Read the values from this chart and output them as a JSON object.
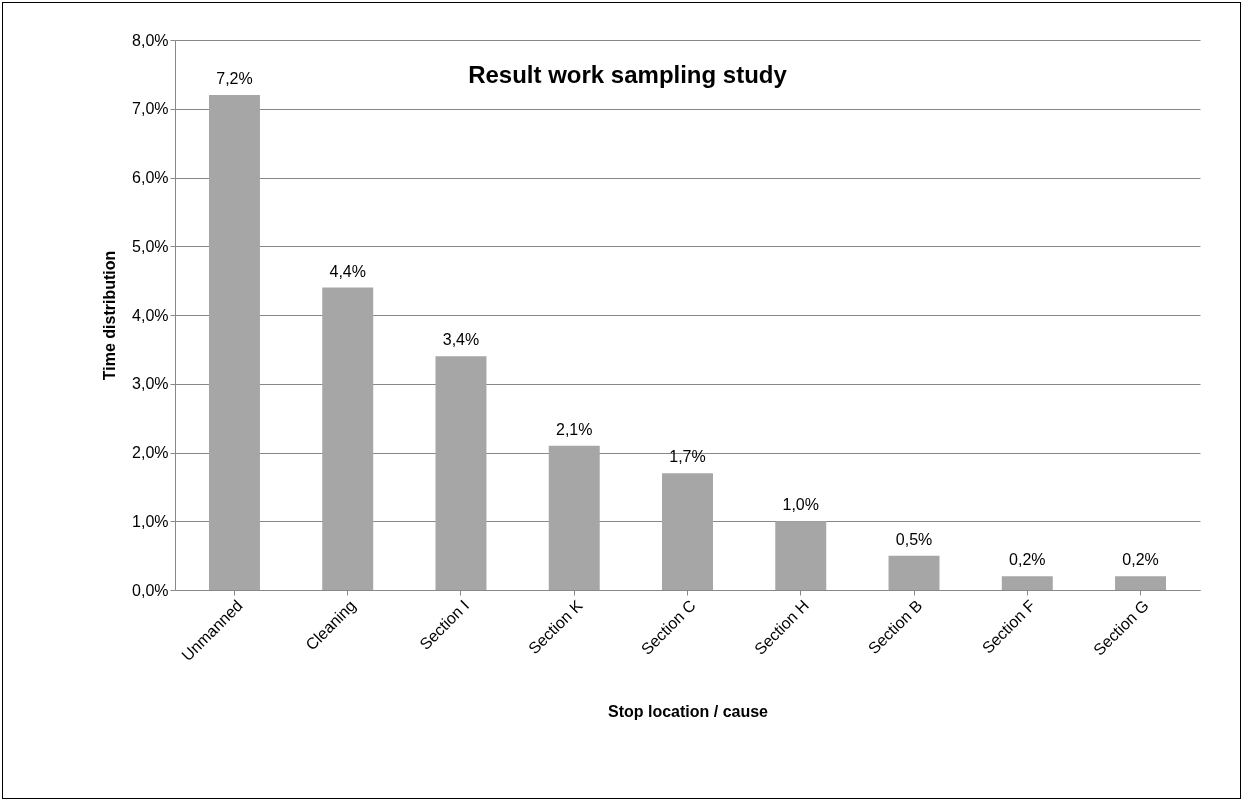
{
  "chart_data": {
    "type": "bar",
    "title": "Result work sampling study",
    "xlabel": "Stop location / cause",
    "ylabel": "Time distribution",
    "categories": [
      "Unmanned",
      "Cleaning",
      "Section I",
      "Section K",
      "Section C",
      "Section H",
      "Section B",
      "Section F",
      "Section G"
    ],
    "values": [
      7.2,
      4.4,
      3.4,
      2.1,
      1.7,
      1.0,
      0.5,
      0.2,
      0.2
    ],
    "value_labels": [
      "7,2%",
      "4,4%",
      "3,4%",
      "2,1%",
      "1,7%",
      "1,0%",
      "0,5%",
      "0,2%",
      "0,2%"
    ],
    "color": "#a6a6a6",
    "ylim": [
      0,
      8
    ],
    "yticks": [
      {
        "value": 0,
        "label": "0,0%"
      },
      {
        "value": 1,
        "label": "1,0%"
      },
      {
        "value": 2,
        "label": "2,0%"
      },
      {
        "value": 3,
        "label": "3,0%"
      },
      {
        "value": 4,
        "label": "4,0%"
      },
      {
        "value": 5,
        "label": "5,0%"
      },
      {
        "value": 6,
        "label": "6,0%"
      },
      {
        "value": 7,
        "label": "7,0%"
      },
      {
        "value": 8,
        "label": "8,0%"
      }
    ],
    "grid": "y"
  }
}
